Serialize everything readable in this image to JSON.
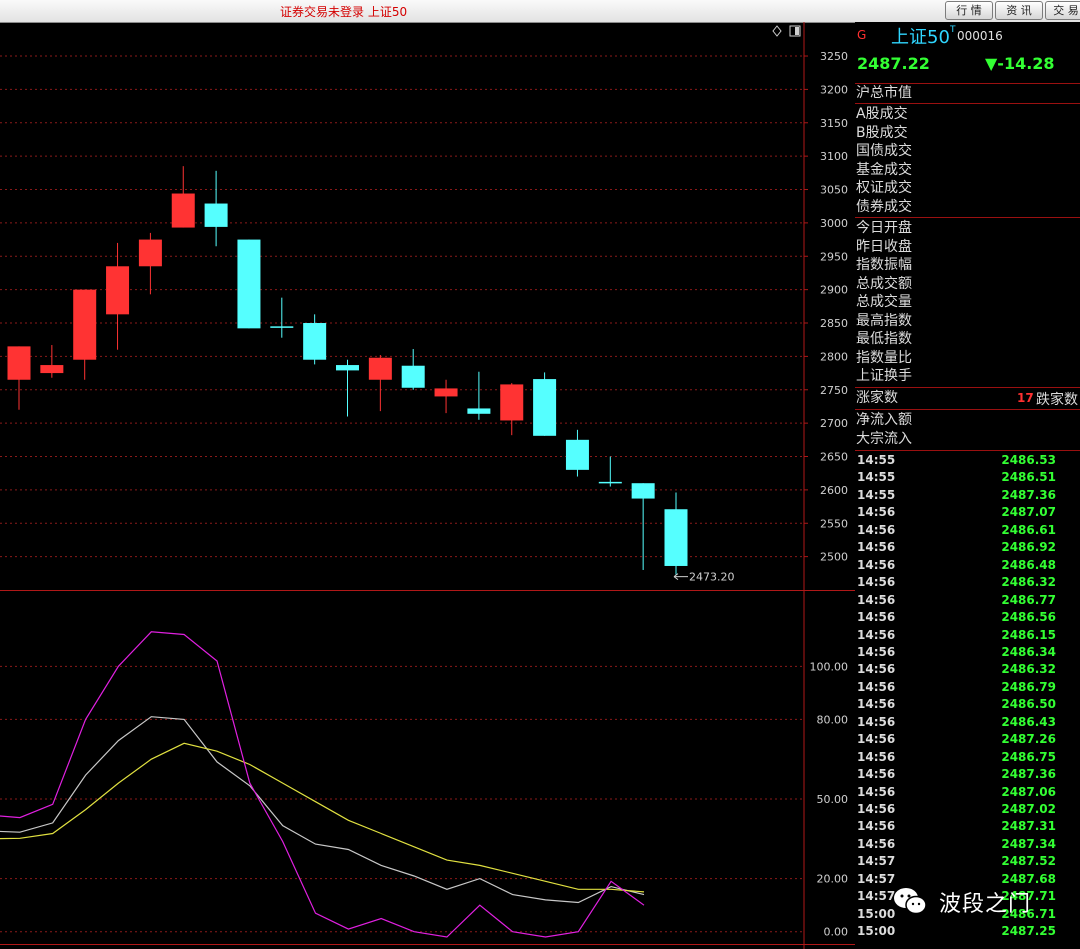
{
  "topbar": {
    "title": "证券交易未登录  上证50",
    "buttons": [
      "行 情",
      "资 讯",
      "交 易"
    ]
  },
  "quote": {
    "flag": "G",
    "name": "上证50",
    "superscript": "T",
    "code": "000016",
    "price": "2487.22",
    "change": "▼-14.28"
  },
  "panel": {
    "market_label": "沪总市值",
    "volume_labels": [
      "A股成交",
      "B股成交",
      "国债成交",
      "基金成交",
      "权证成交",
      "债券成交"
    ],
    "index_labels": [
      "今日开盘",
      "昨日收盘",
      "指数振幅",
      "总成交额",
      "总成交量",
      "最高指数",
      "最低指数",
      "指数量比",
      "上证换手"
    ],
    "rise_label": "涨家数",
    "rise_value": "17",
    "fall_label": "跌家数",
    "flow_labels": [
      "净流入额",
      "大宗流入"
    ]
  },
  "ticks": [
    {
      "time": "14:55",
      "price": "2486.53"
    },
    {
      "time": "14:55",
      "price": "2486.51"
    },
    {
      "time": "14:55",
      "price": "2487.36"
    },
    {
      "time": "14:56",
      "price": "2487.07"
    },
    {
      "time": "14:56",
      "price": "2486.61"
    },
    {
      "time": "14:56",
      "price": "2486.92"
    },
    {
      "time": "14:56",
      "price": "2486.48"
    },
    {
      "time": "14:56",
      "price": "2486.32"
    },
    {
      "time": "14:56",
      "price": "2486.77"
    },
    {
      "time": "14:56",
      "price": "2486.56"
    },
    {
      "time": "14:56",
      "price": "2486.15"
    },
    {
      "time": "14:56",
      "price": "2486.34"
    },
    {
      "time": "14:56",
      "price": "2486.32"
    },
    {
      "time": "14:56",
      "price": "2486.79"
    },
    {
      "time": "14:56",
      "price": "2486.50"
    },
    {
      "time": "14:56",
      "price": "2486.43"
    },
    {
      "time": "14:56",
      "price": "2487.26"
    },
    {
      "time": "14:56",
      "price": "2486.75"
    },
    {
      "time": "14:56",
      "price": "2487.36"
    },
    {
      "time": "14:56",
      "price": "2487.06"
    },
    {
      "time": "14:56",
      "price": "2487.02"
    },
    {
      "time": "14:56",
      "price": "2487.31"
    },
    {
      "time": "14:56",
      "price": "2487.34"
    },
    {
      "time": "14:57",
      "price": "2487.52"
    },
    {
      "time": "14:57",
      "price": "2487.68"
    },
    {
      "time": "14:57",
      "price": "2487.71"
    },
    {
      "time": "15:00",
      "price": "2486.71"
    },
    {
      "time": "15:00",
      "price": "2487.25"
    }
  ],
  "watermark": {
    "text": "波段之门"
  },
  "colors": {
    "up": "#ff3333",
    "down": "#55ffff",
    "grid": "#8b1a1a",
    "kdj_k": "#c8c8c8",
    "kdj_d": "#e0e040",
    "kdj_j": "#e020e0",
    "quote_green": "#33ff33"
  },
  "chart_data": [
    {
      "type": "candlestick",
      "ylim": [
        2450,
        3280
      ],
      "yticks": [
        2500,
        2550,
        2600,
        2650,
        2700,
        2750,
        2800,
        2850,
        2900,
        2950,
        3000,
        3050,
        3100,
        3150,
        3200,
        3250
      ],
      "low_marker": "2473.20",
      "candles": [
        {
          "o": 2765,
          "c": 2815,
          "h": 2815,
          "l": 2720
        },
        {
          "o": 2775,
          "c": 2787,
          "h": 2817,
          "l": 2768
        },
        {
          "o": 2795,
          "c": 2900,
          "h": 2900,
          "l": 2765
        },
        {
          "o": 2863,
          "c": 2935,
          "h": 2970,
          "l": 2810
        },
        {
          "o": 2935,
          "c": 2975,
          "h": 2985,
          "l": 2893
        },
        {
          "o": 2993,
          "c": 3044,
          "h": 3085,
          "l": 2993
        },
        {
          "o": 3029,
          "c": 2994,
          "h": 3078,
          "l": 2965
        },
        {
          "o": 2975,
          "c": 2842,
          "h": 2975,
          "l": 2842
        },
        {
          "o": 2845,
          "c": 2845,
          "h": 2888,
          "l": 2828
        },
        {
          "o": 2850,
          "c": 2795,
          "h": 2863,
          "l": 2788
        },
        {
          "o": 2787,
          "c": 2779,
          "h": 2795,
          "l": 2710
        },
        {
          "o": 2765,
          "c": 2798,
          "h": 2802,
          "l": 2718
        },
        {
          "o": 2786,
          "c": 2753,
          "h": 2811,
          "l": 2750
        },
        {
          "o": 2740,
          "c": 2752,
          "h": 2765,
          "l": 2715
        },
        {
          "o": 2722,
          "c": 2714,
          "h": 2777,
          "l": 2705
        },
        {
          "o": 2704,
          "c": 2758,
          "h": 2760,
          "l": 2682
        },
        {
          "o": 2766,
          "c": 2681,
          "h": 2776,
          "l": 2681
        },
        {
          "o": 2675,
          "c": 2630,
          "h": 2690,
          "l": 2620
        },
        {
          "o": 2612,
          "c": 2612,
          "h": 2650,
          "l": 2605
        },
        {
          "o": 2610,
          "c": 2587,
          "h": 2610,
          "l": 2480
        },
        {
          "o": 2571,
          "c": 2486,
          "h": 2596,
          "l": 2473
        }
      ]
    },
    {
      "type": "line",
      "ylim": [
        -5,
        128
      ],
      "yticks": [
        0.0,
        20.0,
        50.0,
        80.0,
        100.0
      ],
      "ytick_labels": [
        "0.00",
        "20.00",
        "50.00",
        "80.00",
        "100.00"
      ],
      "series": [
        {
          "values": [
            38,
            37.5,
            41,
            59,
            72,
            81,
            80,
            64,
            55,
            40,
            33,
            31,
            25,
            21,
            16,
            20,
            14,
            12,
            11,
            17,
            14
          ]
        },
        {
          "values": [
            35,
            35.2,
            37,
            46,
            56,
            65,
            71,
            68,
            63,
            56,
            49,
            42,
            37,
            32,
            27,
            25,
            22,
            19,
            16,
            16,
            15
          ]
        },
        {
          "values": [
            44,
            43,
            48,
            80,
            100,
            113,
            112,
            102,
            56,
            34,
            7,
            1,
            5,
            0,
            -2,
            10,
            0,
            -2,
            0,
            19,
            10
          ]
        }
      ]
    }
  ]
}
